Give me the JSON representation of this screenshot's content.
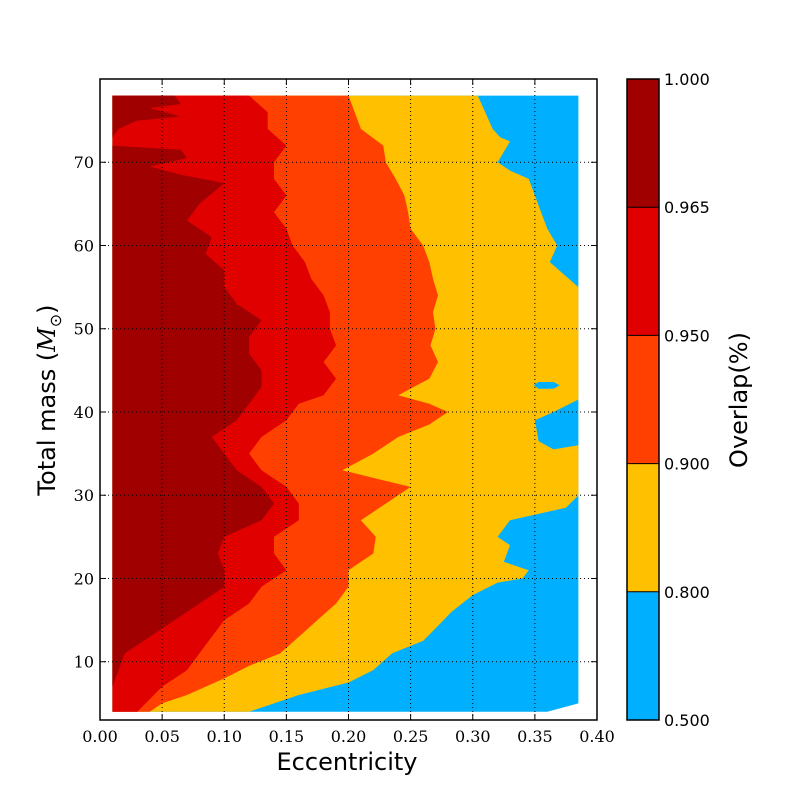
{
  "chart_data": {
    "type": "contour",
    "title": "",
    "xlabel": "Eccentricity",
    "ylabel_text": "Total mass (",
    "ylabel_symbol": "M",
    "ylabel_subscript": "⊙",
    "ylabel_close": ")",
    "xlim": [
      0.0,
      0.4
    ],
    "ylim": [
      3,
      80
    ],
    "x_ticks": [
      0.0,
      0.05,
      0.1,
      0.15,
      0.2,
      0.25,
      0.3,
      0.35,
      0.4
    ],
    "x_tick_labels": [
      "0.00",
      "0.05",
      "0.10",
      "0.15",
      "0.20",
      "0.25",
      "0.30",
      "0.35",
      "0.40"
    ],
    "y_ticks": [
      10,
      20,
      30,
      40,
      50,
      60,
      70
    ],
    "y_tick_labels": [
      "10",
      "20",
      "30",
      "40",
      "50",
      "60",
      "70"
    ],
    "grid": true,
    "colorbar": {
      "label": "Overlap(%)",
      "levels": [
        0.5,
        0.8,
        0.9,
        0.95,
        0.965,
        1.0
      ],
      "tick_labels": [
        "0.500",
        "0.800",
        "0.900",
        "0.950",
        "0.965",
        "1.000"
      ],
      "colors": [
        "#00b0ff",
        "#ffc000",
        "#ff4000",
        "#e00000",
        "#a00000"
      ]
    },
    "bands": [
      {
        "range": [
          0.5,
          0.8
        ],
        "color": "#00b0ff",
        "boundary": [
          [
            0.385,
            78
          ],
          [
            0.385,
            5
          ],
          [
            0.36,
            4
          ],
          [
            0.01,
            4
          ],
          [
            0.01,
            78
          ]
        ]
      },
      {
        "range": [
          0.8,
          0.9
        ],
        "color": "#ffc000",
        "boundary": [
          [
            0.304,
            78
          ],
          [
            0.31,
            76
          ],
          [
            0.316,
            74
          ],
          [
            0.322,
            73
          ],
          [
            0.33,
            72.5
          ],
          [
            0.32,
            70
          ],
          [
            0.33,
            69
          ],
          [
            0.345,
            68
          ],
          [
            0.35,
            66
          ],
          [
            0.355,
            64
          ],
          [
            0.36,
            62
          ],
          [
            0.368,
            60
          ],
          [
            0.362,
            58
          ],
          [
            0.385,
            55
          ],
          [
            0.385,
            41.5
          ],
          [
            0.365,
            40
          ],
          [
            0.35,
            39
          ],
          [
            0.353,
            36.5
          ],
          [
            0.365,
            35.5
          ],
          [
            0.385,
            36
          ],
          [
            0.385,
            30
          ],
          [
            0.375,
            28.5
          ],
          [
            0.33,
            27
          ],
          [
            0.32,
            25
          ],
          [
            0.33,
            24
          ],
          [
            0.325,
            22
          ],
          [
            0.345,
            21
          ],
          [
            0.34,
            20
          ],
          [
            0.32,
            19.5
          ],
          [
            0.3,
            18
          ],
          [
            0.283,
            16
          ],
          [
            0.27,
            14
          ],
          [
            0.26,
            12.5
          ],
          [
            0.235,
            11
          ],
          [
            0.22,
            9
          ],
          [
            0.2,
            7.5
          ],
          [
            0.16,
            6
          ],
          [
            0.14,
            5
          ],
          [
            0.12,
            4
          ],
          [
            0.01,
            4
          ],
          [
            0.01,
            78
          ]
        ]
      },
      {
        "range": [
          0.9,
          0.95
        ],
        "color": "#ff4000",
        "boundary": [
          [
            0.2,
            78
          ],
          [
            0.205,
            76
          ],
          [
            0.21,
            74
          ],
          [
            0.228,
            72
          ],
          [
            0.23,
            70
          ],
          [
            0.238,
            68
          ],
          [
            0.245,
            66
          ],
          [
            0.248,
            64
          ],
          [
            0.25,
            62
          ],
          [
            0.26,
            60
          ],
          [
            0.265,
            58
          ],
          [
            0.268,
            56
          ],
          [
            0.272,
            54
          ],
          [
            0.268,
            52
          ],
          [
            0.27,
            50
          ],
          [
            0.266,
            48
          ],
          [
            0.272,
            46
          ],
          [
            0.265,
            44
          ],
          [
            0.24,
            42
          ],
          [
            0.265,
            41
          ],
          [
            0.28,
            40
          ],
          [
            0.265,
            38.5
          ],
          [
            0.24,
            37
          ],
          [
            0.22,
            35
          ],
          [
            0.195,
            33
          ],
          [
            0.25,
            31
          ],
          [
            0.23,
            29
          ],
          [
            0.21,
            27
          ],
          [
            0.222,
            25
          ],
          [
            0.22,
            23
          ],
          [
            0.2,
            21
          ],
          [
            0.2,
            19
          ],
          [
            0.19,
            17
          ],
          [
            0.175,
            15
          ],
          [
            0.16,
            13
          ],
          [
            0.145,
            11
          ],
          [
            0.12,
            9.5
          ],
          [
            0.1,
            8
          ],
          [
            0.07,
            6
          ],
          [
            0.05,
            5
          ],
          [
            0.04,
            4
          ],
          [
            0.01,
            4
          ],
          [
            0.01,
            78
          ]
        ]
      },
      {
        "range": [
          0.95,
          0.965
        ],
        "color": "#e00000",
        "boundary": [
          [
            0.12,
            78
          ],
          [
            0.135,
            76
          ],
          [
            0.135,
            74
          ],
          [
            0.15,
            72
          ],
          [
            0.14,
            70
          ],
          [
            0.14,
            68
          ],
          [
            0.15,
            66
          ],
          [
            0.14,
            64
          ],
          [
            0.15,
            62
          ],
          [
            0.155,
            60
          ],
          [
            0.165,
            58
          ],
          [
            0.17,
            56
          ],
          [
            0.18,
            54
          ],
          [
            0.185,
            52
          ],
          [
            0.185,
            50
          ],
          [
            0.19,
            48
          ],
          [
            0.18,
            46
          ],
          [
            0.19,
            44
          ],
          [
            0.18,
            42
          ],
          [
            0.16,
            41
          ],
          [
            0.15,
            39
          ],
          [
            0.13,
            37
          ],
          [
            0.12,
            35
          ],
          [
            0.13,
            33
          ],
          [
            0.15,
            31
          ],
          [
            0.16,
            29
          ],
          [
            0.16,
            27
          ],
          [
            0.14,
            25
          ],
          [
            0.14,
            23
          ],
          [
            0.15,
            21
          ],
          [
            0.13,
            19
          ],
          [
            0.12,
            17
          ],
          [
            0.1,
            15
          ],
          [
            0.09,
            13
          ],
          [
            0.08,
            11
          ],
          [
            0.07,
            9
          ],
          [
            0.05,
            7
          ],
          [
            0.04,
            5.5
          ],
          [
            0.03,
            4
          ],
          [
            0.01,
            4
          ],
          [
            0.01,
            78
          ]
        ]
      },
      {
        "range": [
          0.965,
          1.0
        ],
        "color": "#a00000",
        "boundary": [
          [
            0.01,
            78
          ],
          [
            0.06,
            78
          ],
          [
            0.065,
            77
          ],
          [
            0.04,
            76.5
          ],
          [
            0.065,
            75.5
          ],
          [
            0.03,
            75
          ],
          [
            0.015,
            74
          ],
          [
            0.01,
            73
          ],
          [
            0.01,
            72
          ],
          [
            0.065,
            71.5
          ],
          [
            0.07,
            70.5
          ],
          [
            0.04,
            69.5
          ],
          [
            0.065,
            68.5
          ],
          [
            0.1,
            67.5
          ],
          [
            0.08,
            65
          ],
          [
            0.07,
            63
          ],
          [
            0.09,
            61
          ],
          [
            0.085,
            59
          ],
          [
            0.1,
            57
          ],
          [
            0.1,
            55
          ],
          [
            0.11,
            53
          ],
          [
            0.13,
            51
          ],
          [
            0.12,
            49
          ],
          [
            0.12,
            47
          ],
          [
            0.13,
            45
          ],
          [
            0.13,
            43
          ],
          [
            0.12,
            41
          ],
          [
            0.11,
            39
          ],
          [
            0.09,
            37
          ],
          [
            0.1,
            35
          ],
          [
            0.11,
            33
          ],
          [
            0.13,
            31
          ],
          [
            0.14,
            29
          ],
          [
            0.13,
            27
          ],
          [
            0.1,
            25
          ],
          [
            0.095,
            23
          ],
          [
            0.1,
            21
          ],
          [
            0.1,
            19
          ],
          [
            0.08,
            17
          ],
          [
            0.06,
            15
          ],
          [
            0.04,
            13
          ],
          [
            0.02,
            11
          ],
          [
            0.015,
            9
          ],
          [
            0.01,
            7
          ],
          [
            0.01,
            4
          ]
        ]
      }
    ],
    "blue_island": [
      [
        0.349,
        43.2
      ],
      [
        0.353,
        42.8
      ],
      [
        0.365,
        42.8
      ],
      [
        0.37,
        43.2
      ],
      [
        0.365,
        43.6
      ],
      [
        0.353,
        43.6
      ]
    ]
  }
}
